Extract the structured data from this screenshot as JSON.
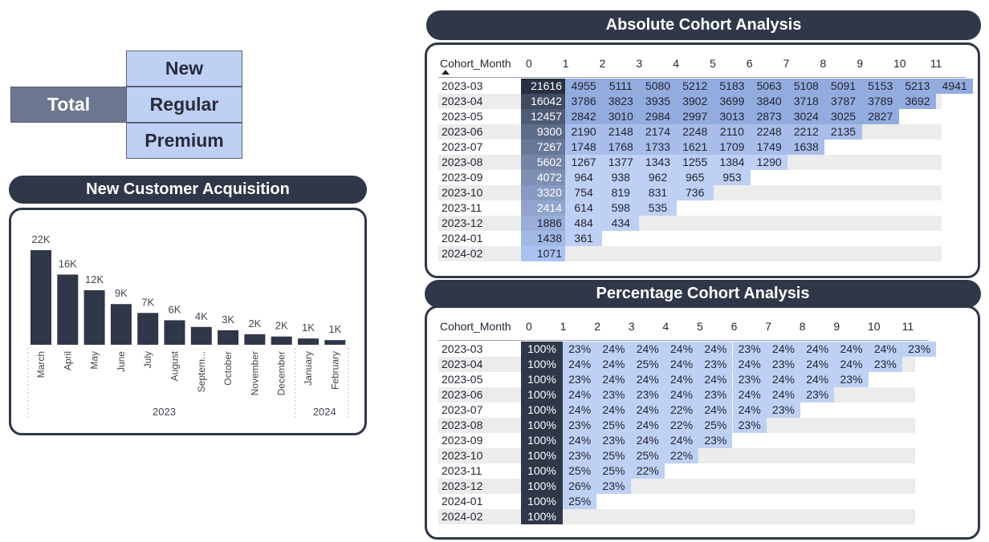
{
  "segment_slicer": {
    "total_label": "Total",
    "options": [
      "New",
      "Regular",
      "Premium"
    ]
  },
  "acquisition": {
    "title": "New Customer Acquisition",
    "chart_data": {
      "type": "bar",
      "categories": [
        "March",
        "April",
        "May",
        "June",
        "July",
        "August",
        "Septem...",
        "October",
        "November",
        "December",
        "January",
        "February"
      ],
      "values": [
        21616,
        16042,
        12457,
        9300,
        7267,
        5602,
        4072,
        3320,
        2414,
        1886,
        1438,
        1071
      ],
      "data_labels": [
        "22K",
        "16K",
        "12K",
        "9K",
        "7K",
        "6K",
        "4K",
        "3K",
        "2K",
        "2K",
        "1K",
        "1K"
      ],
      "year_groups": [
        {
          "label": "2023",
          "count": 10
        },
        {
          "label": "2024",
          "count": 2
        }
      ],
      "color": "#2f3749"
    }
  },
  "absolute": {
    "title": "Absolute Cohort Analysis",
    "corner_label": "Cohort_Month",
    "columns": [
      "0",
      "1",
      "2",
      "3",
      "4",
      "5",
      "6",
      "7",
      "8",
      "9",
      "10",
      "11"
    ],
    "rows": [
      {
        "month": "2023-03",
        "values": [
          "21616",
          "4955",
          "5111",
          "5080",
          "5212",
          "5183",
          "5063",
          "5108",
          "5091",
          "5153",
          "5213",
          "4941"
        ]
      },
      {
        "month": "2023-04",
        "values": [
          "16042",
          "3786",
          "3823",
          "3935",
          "3902",
          "3699",
          "3840",
          "3718",
          "3787",
          "3789",
          "3692"
        ]
      },
      {
        "month": "2023-05",
        "values": [
          "12457",
          "2842",
          "3010",
          "2984",
          "2997",
          "3013",
          "2873",
          "3024",
          "3025",
          "2827"
        ]
      },
      {
        "month": "2023-06",
        "values": [
          "9300",
          "2190",
          "2148",
          "2174",
          "2248",
          "2110",
          "2248",
          "2212",
          "2135"
        ]
      },
      {
        "month": "2023-07",
        "values": [
          "7267",
          "1748",
          "1768",
          "1733",
          "1621",
          "1709",
          "1749",
          "1638"
        ]
      },
      {
        "month": "2023-08",
        "values": [
          "5602",
          "1267",
          "1377",
          "1343",
          "1255",
          "1384",
          "1290"
        ]
      },
      {
        "month": "2023-09",
        "values": [
          "4072",
          "964",
          "938",
          "962",
          "965",
          "953"
        ]
      },
      {
        "month": "2023-10",
        "values": [
          "3320",
          "754",
          "819",
          "831",
          "736"
        ]
      },
      {
        "month": "2023-11",
        "values": [
          "2414",
          "614",
          "598",
          "535"
        ]
      },
      {
        "month": "2023-12",
        "values": [
          "1886",
          "484",
          "434"
        ]
      },
      {
        "month": "2024-01",
        "values": [
          "1438",
          "361"
        ]
      },
      {
        "month": "2024-02",
        "values": [
          "1071"
        ]
      }
    ]
  },
  "percentage": {
    "title": "Percentage Cohort Analysis",
    "corner_label": "Cohort_Month",
    "columns": [
      "0",
      "1",
      "2",
      "3",
      "4",
      "5",
      "6",
      "7",
      "8",
      "9",
      "10",
      "11"
    ],
    "rows": [
      {
        "month": "2023-03",
        "values": [
          "100%",
          "23%",
          "24%",
          "24%",
          "24%",
          "24%",
          "23%",
          "24%",
          "24%",
          "24%",
          "24%",
          "23%"
        ]
      },
      {
        "month": "2023-04",
        "values": [
          "100%",
          "24%",
          "24%",
          "25%",
          "24%",
          "23%",
          "24%",
          "23%",
          "24%",
          "24%",
          "23%"
        ]
      },
      {
        "month": "2023-05",
        "values": [
          "100%",
          "23%",
          "24%",
          "24%",
          "24%",
          "24%",
          "23%",
          "24%",
          "24%",
          "23%"
        ]
      },
      {
        "month": "2023-06",
        "values": [
          "100%",
          "24%",
          "23%",
          "23%",
          "24%",
          "23%",
          "24%",
          "24%",
          "23%"
        ]
      },
      {
        "month": "2023-07",
        "values": [
          "100%",
          "24%",
          "24%",
          "24%",
          "22%",
          "24%",
          "24%",
          "23%"
        ]
      },
      {
        "month": "2023-08",
        "values": [
          "100%",
          "23%",
          "25%",
          "24%",
          "22%",
          "25%",
          "23%"
        ]
      },
      {
        "month": "2023-09",
        "values": [
          "100%",
          "24%",
          "23%",
          "24%",
          "24%",
          "23%"
        ]
      },
      {
        "month": "2023-10",
        "values": [
          "100%",
          "23%",
          "25%",
          "25%",
          "22%"
        ]
      },
      {
        "month": "2023-11",
        "values": [
          "100%",
          "25%",
          "25%",
          "22%"
        ]
      },
      {
        "month": "2023-12",
        "values": [
          "100%",
          "26%",
          "23%"
        ]
      },
      {
        "month": "2024-01",
        "values": [
          "100%",
          "25%"
        ]
      },
      {
        "month": "2024-02",
        "values": [
          "100%"
        ]
      }
    ]
  },
  "colors": {
    "dark": "#2f3749",
    "light_blue": "#bfd0f5",
    "mid_blue": "#93acdf",
    "stripe": "#ececec"
  }
}
